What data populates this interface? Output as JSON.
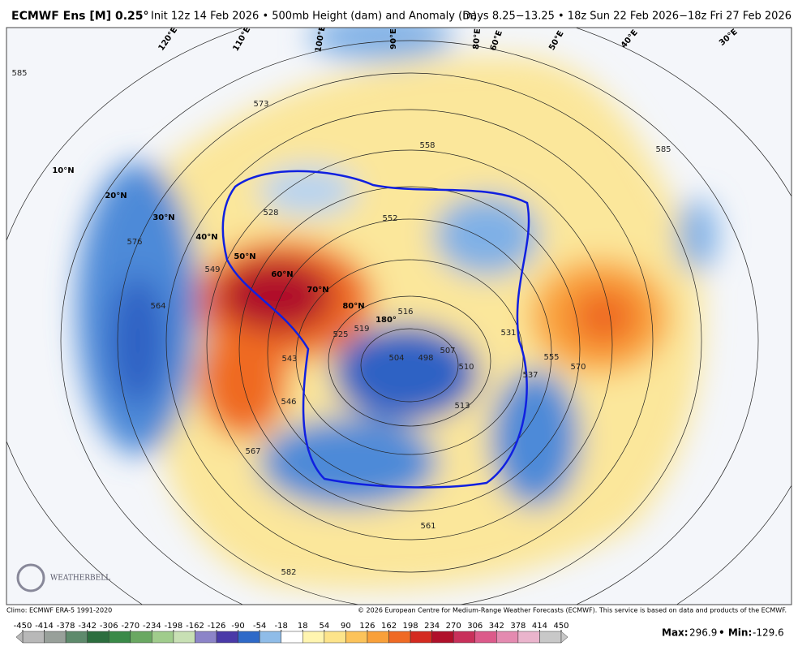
{
  "header": {
    "title": "ECMWF Ens [M] 0.25°",
    "subtitle": "Init 12z 14 Feb 2026 • 500mb Height (dam) and Anomaly (m)",
    "valid": "Days 8.25−13.25 • 18z Sun 22 Feb 2026−18z Fri 27 Feb 2026"
  },
  "map": {
    "latitude_labels": [
      "10°N",
      "20°N",
      "30°N",
      "40°N",
      "50°N",
      "60°N",
      "70°N",
      "80°N",
      "180°"
    ],
    "longitude_labels": [
      "120°E",
      "110°E",
      "100°E",
      "90°E",
      "80°E",
      "60°E",
      "50°E",
      "40°E",
      "30°E"
    ],
    "contour_labels": [
      "585",
      "573",
      "558",
      "528",
      "576",
      "564",
      "549",
      "543",
      "546",
      "567",
      "582",
      "525",
      "519",
      "516",
      "507",
      "498",
      "504",
      "510",
      "513",
      "531",
      "537",
      "555",
      "570",
      "552",
      "561",
      "585"
    ],
    "logo": "WEATHERBELL"
  },
  "footer": {
    "climo": "Climo: ECMWF ERA-5 1991-2020",
    "copyright": "© 2026 European Centre for Medium-Range Weather Forecasts (ECMWF). This service is based on data and products of the ECMWF."
  },
  "colorbar": {
    "ticks": [
      -450,
      -414,
      -378,
      -342,
      -306,
      -270,
      -234,
      -198,
      -162,
      -126,
      -90,
      -54,
      -18,
      18,
      54,
      90,
      126,
      162,
      198,
      234,
      270,
      306,
      342,
      378,
      414,
      450
    ],
    "colors": [
      "#b8b8b8",
      "#98a09a",
      "#5e8a6c",
      "#2c6e3e",
      "#3a8a48",
      "#6aa862",
      "#a0cc8c",
      "#c8e0b4",
      "#8c84c8",
      "#4a3aa8",
      "#2f6ac8",
      "#8fbce8",
      "#ffffff",
      "#fff5b0",
      "#fde48a",
      "#fcc35a",
      "#f9a03a",
      "#ef6a24",
      "#d42a20",
      "#b0102a",
      "#c8305a",
      "#dc5a8a",
      "#e48ab0",
      "#eab4cc",
      "#c8c8c8"
    ]
  },
  "stats": {
    "max_label": "Max:",
    "max": 296.9,
    "min_label": "• Min:",
    "min": -129.6
  }
}
